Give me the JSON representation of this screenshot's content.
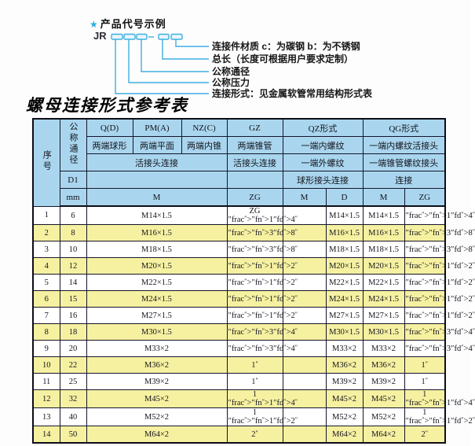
{
  "diagram": {
    "star_icon": "★",
    "title": "产品代号示例",
    "code_prefix": "JR",
    "labels": [
      "连接件材质  c：为碳钢  b：为不锈钢",
      "总长（长度可根据用户要求定制）",
      "公称通径",
      "公称压力",
      "连接形式：见金属软管常用结构形式表"
    ]
  },
  "table_title": "螺母连接形式参考表",
  "table": {
    "header": {
      "seq": "序号",
      "dn": "公称通径",
      "d1": "D1",
      "unit": "mm",
      "groups": {
        "q": "Q(D)",
        "pm": "PM(A)",
        "nz": "NZ(C)",
        "gz": "GZ",
        "qz": "QZ形式",
        "qg": "QG形式"
      },
      "descs": {
        "q": "两端球形",
        "pm": "两端平面",
        "nz": "两端内锥",
        "gz": "两端锥管",
        "qz": "一端内螺纹",
        "qg": "一端内螺纹活接头"
      },
      "conns": {
        "qpmnz": "活接头连接",
        "gz": "活接头连接",
        "qz": "一端外螺纹",
        "qg": "一端锥管螺纹接头"
      },
      "conns2": {
        "qz": "球形接头连接",
        "qg": "连接"
      },
      "threads": {
        "m": "M",
        "zg": "ZG",
        "qz_m": "M",
        "qz_d": "D",
        "qg_m": "M",
        "qg_zg": "ZG"
      }
    },
    "rows": [
      {
        "no": "1",
        "dn": "6",
        "m": "M14×1.5",
        "gz": "ZG 1/4\"",
        "qz_m": "",
        "qz_d": "M14×1.5",
        "qg_m": "M14×1.5",
        "qg_zg": "1/4\""
      },
      {
        "no": "2",
        "dn": "8",
        "m": "M16×1.5",
        "gz": "3/8\"",
        "qz_m": "",
        "qz_d": "M16×1.5",
        "qg_m": "M16×1.5",
        "qg_zg": "3/8\""
      },
      {
        "no": "3",
        "dn": "10",
        "m": "M18×1.5",
        "gz": "3/8\"",
        "qz_m": "",
        "qz_d": "M18×1.5",
        "qg_m": "M18×1.5",
        "qg_zg": "3/8\""
      },
      {
        "no": "4",
        "dn": "12",
        "m": "M20×1.5",
        "gz": "1/2\"",
        "qz_m": "",
        "qz_d": "M20×1.5",
        "qg_m": "M20×1.5",
        "qg_zg": "1/2\""
      },
      {
        "no": "5",
        "dn": "14",
        "m": "M22×1.5",
        "gz": "1/2\"",
        "qz_m": "",
        "qz_d": "M22×1.5",
        "qg_m": "M22×1.5",
        "qg_zg": "1/2\""
      },
      {
        "no": "6",
        "dn": "15",
        "m": "M24×1.5",
        "gz": "1/2\"",
        "qz_m": "",
        "qz_d": "M24×1.5",
        "qg_m": "M24×1.5",
        "qg_zg": "1/2\""
      },
      {
        "no": "7",
        "dn": "16",
        "m": "M27×1.5",
        "gz": "1/2\"",
        "qz_m": "",
        "qz_d": "M27×1.5",
        "qg_m": "M27×1.5",
        "qg_zg": "1/2\""
      },
      {
        "no": "8",
        "dn": "18",
        "m": "M30×1.5",
        "gz": "3/4\"",
        "qz_m": "",
        "qz_d": "M30×1.5",
        "qg_m": "M30×1.5",
        "qg_zg": "3/4\""
      },
      {
        "no": "9",
        "dn": "20",
        "m": "M33×2",
        "gz": "3/4\"",
        "qz_m": "",
        "qz_d": "M33×2",
        "qg_m": "M33×2",
        "qg_zg": "3/4\""
      },
      {
        "no": "10",
        "dn": "22",
        "m": "M36×2",
        "gz": "1\"",
        "qz_m": "",
        "qz_d": "M36×2",
        "qg_m": "M36×2",
        "qg_zg": "1\""
      },
      {
        "no": "11",
        "dn": "25",
        "m": "M39×2",
        "gz": "1\"",
        "qz_m": "",
        "qz_d": "M39×2",
        "qg_m": "M39×2",
        "qg_zg": "1\""
      },
      {
        "no": "12",
        "dn": "32",
        "m": "M45×2",
        "gz": "1 1/4\"",
        "qz_m": "",
        "qz_d": "M45×2",
        "qg_m": "M45×2",
        "qg_zg": "1 1/4\""
      },
      {
        "no": "13",
        "dn": "40",
        "m": "M52×2",
        "gz": "1 1/2\"",
        "qz_m": "",
        "qz_d": "M52×2",
        "qg_m": "M52×2",
        "qg_zg": "1 1/2\""
      },
      {
        "no": "14",
        "dn": "50",
        "m": "M64×2",
        "gz": "2\"",
        "qz_m": "",
        "qz_d": "M64×2",
        "qg_m": "M64×2",
        "qg_zg": "2\""
      }
    ]
  },
  "colors": {
    "diagram_blue": "#3eafe0",
    "star_blue": "#29abe2",
    "header_bg": "#a9d6ee",
    "row_alt_bg": "#f6f1a1",
    "border": "#15152a"
  }
}
